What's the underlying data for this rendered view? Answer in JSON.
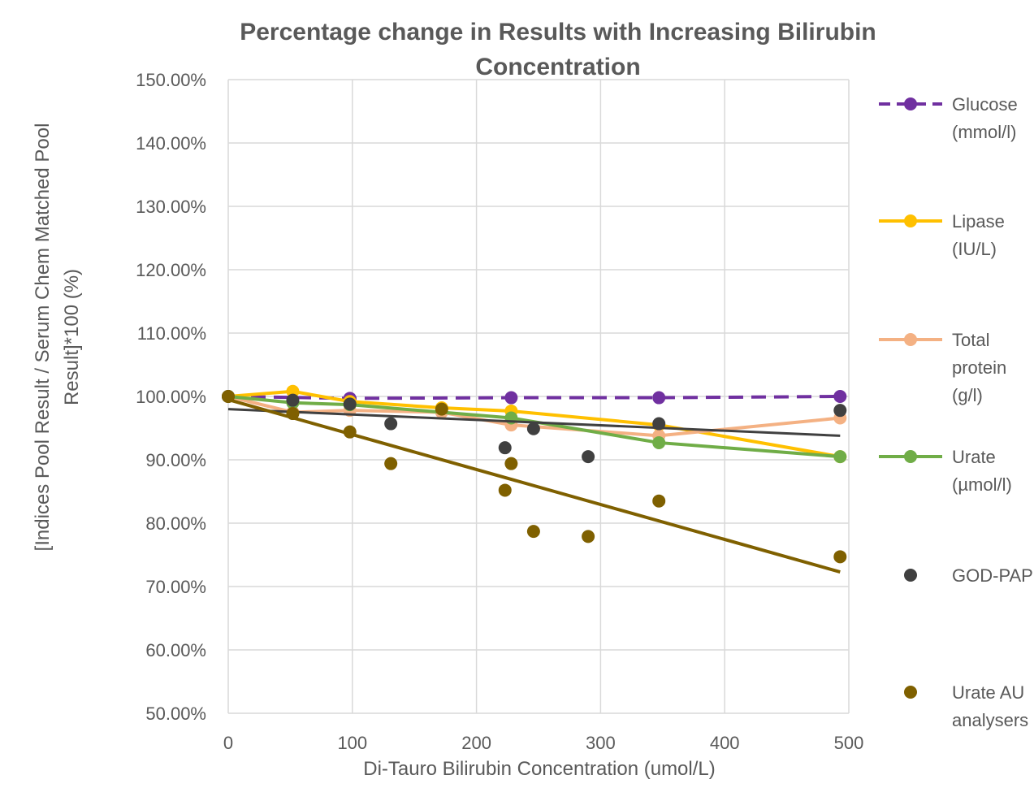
{
  "chart_data": {
    "type": "line",
    "title_line1": "Percentage change in Results with Increasing Bilirubin",
    "title_line2": "Concentration",
    "xlabel": "Di-Tauro Bilirubin Concentration (umol/L)",
    "ylabel_line1": "[Indices Pool Result / Serum Chem Matched Pool",
    "ylabel_line2": "Result]*100 (%)",
    "xlim": [
      0,
      500
    ],
    "ylim": [
      50,
      150
    ],
    "x_ticks": [
      0,
      100,
      200,
      300,
      400,
      500
    ],
    "x_tick_labels": [
      "0",
      "100",
      "200",
      "300",
      "400",
      "500"
    ],
    "y_ticks": [
      50,
      60,
      70,
      80,
      90,
      100,
      110,
      120,
      130,
      140,
      150
    ],
    "y_tick_labels": [
      "50.00%",
      "60.00%",
      "70.00%",
      "80.00%",
      "90.00%",
      "100.00%",
      "110.00%",
      "120.00%",
      "130.00%",
      "140.00%",
      "150.00%"
    ],
    "grid": true,
    "legend_position": "right",
    "series": [
      {
        "name": "Glucose (mmol/l)",
        "legend_lines": [
          "Glucose",
          "(mmol/l)"
        ],
        "kind": "line",
        "dashed": true,
        "color": "#7030A0",
        "x": [
          0,
          98,
          228,
          347,
          493
        ],
        "y": [
          100,
          99.7,
          99.8,
          99.8,
          100
        ]
      },
      {
        "name": "Lipase (IU/L)",
        "legend_lines": [
          "Lipase",
          "(IU/L)"
        ],
        "kind": "line",
        "dashed": false,
        "color": "#FFC000",
        "x": [
          0,
          52,
          98,
          172,
          228,
          347,
          493
        ],
        "y": [
          100,
          100.8,
          99.2,
          98.2,
          97.7,
          95.5,
          90.5
        ]
      },
      {
        "name": "Total protein (g/l)",
        "legend_lines": [
          "Total",
          "protein",
          "(g/l)"
        ],
        "kind": "line",
        "dashed": false,
        "color": "#F4B183",
        "x": [
          0,
          52,
          98,
          172,
          228,
          347,
          493
        ],
        "y": [
          100,
          97.5,
          97.8,
          97.5,
          95.5,
          93.8,
          96.6
        ]
      },
      {
        "name": "Urate (µmol/l)",
        "legend_lines": [
          "Urate",
          "(µmol/l)"
        ],
        "kind": "line",
        "dashed": false,
        "color": "#70AD47",
        "x": [
          0,
          52,
          98,
          228,
          347,
          493
        ],
        "y": [
          100,
          99.0,
          98.7,
          96.6,
          92.7,
          90.5
        ]
      },
      {
        "name": "GOD-PAP",
        "legend_lines": [
          "GOD-PAP"
        ],
        "kind": "scatter",
        "color": "#404040",
        "x": [
          0,
          52,
          98,
          131,
          223,
          246,
          290,
          347,
          493
        ],
        "y": [
          100,
          99.4,
          98.8,
          95.7,
          91.9,
          94.9,
          90.5,
          95.7,
          97.8
        ],
        "trend": {
          "x": [
            0,
            493
          ],
          "y": [
            98,
            93.8
          ]
        }
      },
      {
        "name": "Urate AU analysers",
        "legend_lines": [
          "Urate AU",
          "analysers"
        ],
        "kind": "scatter",
        "color": "#7F6000",
        "x": [
          0,
          52,
          98,
          131,
          172,
          223,
          228,
          246,
          290,
          347,
          493
        ],
        "y": [
          100,
          97.3,
          94.4,
          89.4,
          98.0,
          85.2,
          89.4,
          78.7,
          77.9,
          83.5,
          74.7
        ],
        "trend": {
          "x": [
            0,
            493
          ],
          "y": [
            99.5,
            72.3
          ]
        }
      }
    ]
  }
}
